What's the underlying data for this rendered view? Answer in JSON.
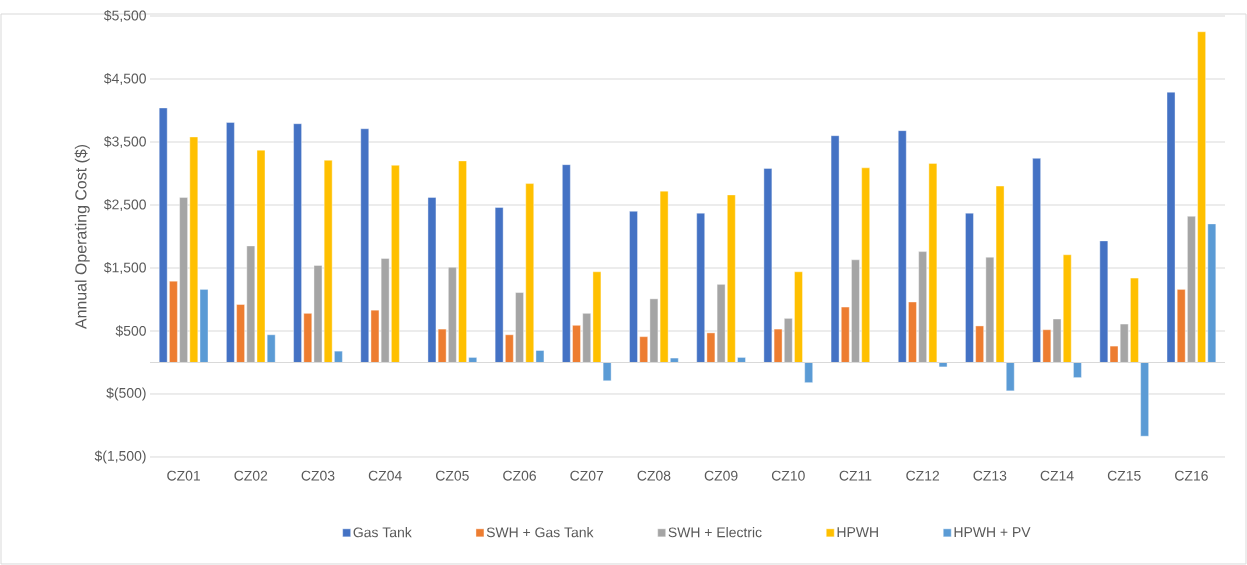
{
  "chart_data": {
    "type": "bar",
    "ylabel": "Annual Operating Cost ($)",
    "categories": [
      "CZ01",
      "CZ02",
      "CZ03",
      "CZ04",
      "CZ05",
      "CZ06",
      "CZ07",
      "CZ08",
      "CZ09",
      "CZ10",
      "CZ11",
      "CZ12",
      "CZ13",
      "CZ14",
      "CZ15",
      "CZ16"
    ],
    "series": [
      {
        "name": "Gas Tank",
        "color": "#4472c4",
        "values": [
          4040,
          3810,
          3790,
          3710,
          2620,
          2460,
          3140,
          2400,
          2370,
          3080,
          3600,
          3680,
          2370,
          3240,
          1930,
          4290
        ]
      },
      {
        "name": "SWH + Gas Tank",
        "color": "#ed7d31",
        "values": [
          1290,
          920,
          780,
          830,
          530,
          440,
          590,
          410,
          470,
          530,
          880,
          960,
          580,
          520,
          260,
          1160
        ]
      },
      {
        "name": "SWH + Electric",
        "color": "#a5a5a5",
        "values": [
          2620,
          1850,
          1540,
          1650,
          1510,
          1110,
          780,
          1010,
          1240,
          700,
          1630,
          1760,
          1670,
          690,
          610,
          2320
        ]
      },
      {
        "name": "HPWH",
        "color": "#ffc000",
        "values": [
          3580,
          3370,
          3210,
          3130,
          3200,
          2840,
          1440,
          2720,
          2660,
          1440,
          3090,
          3160,
          2800,
          1710,
          1340,
          5250
        ]
      },
      {
        "name": "HPWH + PV",
        "color": "#5b9bd5",
        "values": [
          1160,
          440,
          180,
          null,
          80,
          190,
          -290,
          70,
          80,
          -320,
          null,
          -70,
          -450,
          -240,
          -1170,
          2200
        ]
      }
    ],
    "ylim": [
      -1500,
      5500
    ],
    "yticks": [
      {
        "value": -1500,
        "label": "$(1,500)"
      },
      {
        "value": -500,
        "label": "$(500)"
      },
      {
        "value": 500,
        "label": "$500"
      },
      {
        "value": 1500,
        "label": "$1,500"
      },
      {
        "value": 2500,
        "label": "$2,500"
      },
      {
        "value": 3500,
        "label": "$3,500"
      },
      {
        "value": 4500,
        "label": "$4,500"
      },
      {
        "value": 5500,
        "label": "$5,500"
      }
    ],
    "grid": "y",
    "legend": "bottom"
  }
}
